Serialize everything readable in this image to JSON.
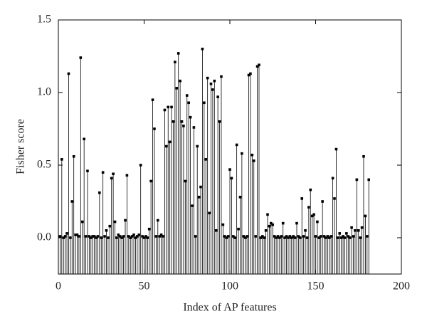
{
  "chart_data": {
    "type": "stem",
    "xlabel": "Index of AP features",
    "ylabel": "Fisher score",
    "color": "#000000",
    "x": [
      1,
      2,
      3,
      4,
      5,
      6,
      7,
      8,
      9,
      10,
      11,
      12,
      13,
      14,
      15,
      16,
      17,
      18,
      19,
      20,
      21,
      22,
      23,
      24,
      25,
      26,
      27,
      28,
      29,
      30,
      31,
      32,
      33,
      34,
      35,
      36,
      37,
      38,
      39,
      40,
      41,
      42,
      43,
      44,
      45,
      46,
      47,
      48,
      49,
      50,
      51,
      52,
      53,
      54,
      55,
      56,
      57,
      58,
      59,
      60,
      61,
      62,
      63,
      64,
      65,
      66,
      67,
      68,
      69,
      70,
      71,
      72,
      73,
      74,
      75,
      76,
      77,
      78,
      79,
      80,
      81,
      82,
      83,
      84,
      85,
      86,
      87,
      88,
      89,
      90,
      91,
      92,
      93,
      94,
      95,
      96,
      97,
      98,
      99,
      100,
      101,
      102,
      103,
      104,
      105,
      106,
      107,
      108,
      109,
      110,
      111,
      112,
      113,
      114,
      115,
      116,
      117,
      118,
      119,
      120,
      121,
      122,
      123,
      124,
      125,
      126,
      127,
      128,
      129,
      130,
      131,
      132,
      133,
      134,
      135,
      136,
      137,
      138,
      139,
      140,
      141,
      142,
      143,
      144,
      145,
      146,
      147,
      148,
      149,
      150,
      151,
      152,
      153,
      154,
      155,
      156,
      157,
      158,
      159,
      160,
      161,
      162,
      163,
      164,
      165,
      166,
      167,
      168,
      169,
      170,
      171,
      172,
      173,
      174,
      175,
      176,
      177,
      178,
      179,
      180,
      181
    ],
    "values": [
      0.01,
      0.54,
      0.0,
      0.01,
      0.03,
      1.13,
      0.0,
      0.25,
      0.56,
      0.02,
      0.02,
      0.01,
      1.24,
      0.11,
      0.68,
      0.01,
      0.46,
      0.01,
      0.0,
      0.01,
      0.01,
      0.0,
      0.01,
      0.31,
      0.0,
      0.45,
      0.01,
      0.05,
      0.0,
      0.08,
      0.41,
      0.44,
      0.11,
      0.0,
      0.02,
      0.01,
      0.0,
      0.01,
      0.12,
      0.43,
      0.01,
      0.0,
      0.01,
      0.02,
      0.0,
      0.01,
      0.02,
      0.5,
      0.01,
      0.0,
      0.01,
      0.0,
      0.06,
      0.39,
      0.95,
      0.75,
      0.01,
      0.12,
      0.01,
      0.02,
      0.01,
      0.88,
      0.63,
      0.9,
      0.66,
      0.9,
      0.8,
      1.21,
      1.03,
      1.27,
      1.08,
      0.8,
      0.77,
      0.39,
      0.98,
      0.93,
      0.83,
      0.22,
      0.76,
      0.01,
      0.63,
      0.28,
      0.35,
      1.3,
      0.93,
      0.54,
      1.1,
      0.17,
      1.06,
      1.02,
      1.08,
      0.05,
      0.97,
      0.8,
      1.11,
      0.09,
      0.01,
      0.0,
      0.01,
      0.47,
      0.41,
      0.01,
      0.0,
      0.64,
      0.06,
      0.28,
      0.58,
      0.01,
      0.0,
      0.01,
      1.12,
      1.13,
      0.57,
      0.53,
      0.01,
      1.18,
      1.19,
      0.0,
      0.01,
      0.0,
      0.05,
      0.16,
      0.08,
      0.1,
      0.09,
      0.01,
      0.0,
      0.01,
      0.0,
      0.01,
      0.1,
      0.0,
      0.01,
      0.0,
      0.01,
      0.0,
      0.01,
      0.0,
      0.1,
      0.01,
      0.0,
      0.27,
      0.01,
      0.05,
      0.0,
      0.21,
      0.33,
      0.15,
      0.16,
      0.01,
      0.11,
      0.0,
      0.01,
      0.25,
      0.01,
      0.0,
      0.01,
      0.0,
      0.01,
      0.41,
      0.27,
      0.61,
      0.0,
      0.03,
      0.0,
      0.01,
      0.0,
      0.03,
      0.01,
      0.0,
      0.07,
      0.01,
      0.05,
      0.4,
      0.05,
      0.0,
      0.07,
      0.56,
      0.15,
      0.01,
      0.4
    ],
    "xlim": [
      0,
      200
    ],
    "xticks": [
      0,
      50,
      100,
      150,
      200
    ],
    "ylim": [
      -0.25,
      1.5
    ],
    "yticks": [
      {
        "value": 0,
        "label": "0.0"
      },
      {
        "value": 0.5,
        "label": "0.5"
      },
      {
        "value": 1,
        "label": "1.0"
      },
      {
        "value": 1.5,
        "label": "1.5"
      }
    ]
  }
}
